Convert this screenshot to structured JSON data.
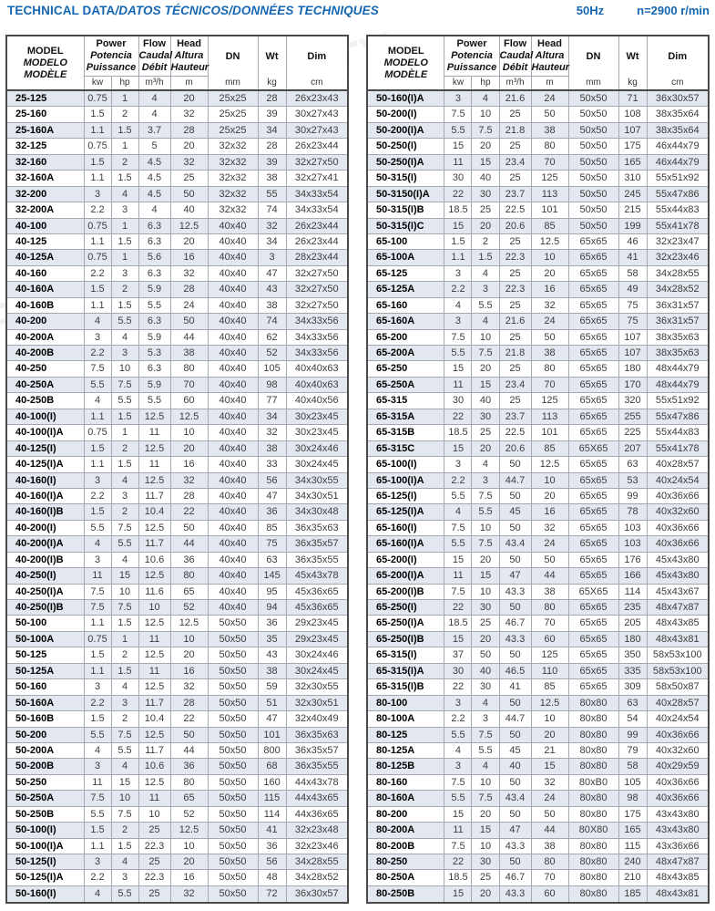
{
  "header_bar": {
    "title_main": "TECHNICAL DATA",
    "title_rest": "/DATOS TÉCNICOS/DONNÉES TECHNIQUES",
    "frequency": "50Hz",
    "speed": "n=2900 r/min"
  },
  "columns": {
    "model": [
      "MODEL",
      "MODELO",
      "MODÈLE"
    ],
    "power": [
      "Power",
      "Potencia",
      "Puissance"
    ],
    "flow": [
      "Flow",
      "Caudal",
      "Débit"
    ],
    "head": [
      "Head",
      "Altura",
      "Hauteur"
    ],
    "dn": "DN",
    "wt": "Wt",
    "dim": "Dim"
  },
  "units": {
    "kw": "kw",
    "hp": "hp",
    "flow": "m³/h",
    "head": "m",
    "dn": "mm",
    "wt": "kg",
    "dim": "cm"
  },
  "colors": {
    "accent_blue": "#1566b1",
    "row_stripe": "#e3e7f0"
  },
  "watermark_text": "PURITY",
  "tables": [
    {
      "name": "left",
      "rows": [
        [
          "25-125",
          "0.75",
          "1",
          "4",
          "20",
          "25x25",
          "28",
          "26x23x43"
        ],
        [
          "25-160",
          "1.5",
          "2",
          "4",
          "32",
          "25x25",
          "39",
          "30x27x43"
        ],
        [
          "25-160A",
          "1.1",
          "1.5",
          "3.7",
          "28",
          "25x25",
          "34",
          "30x27x43"
        ],
        [
          "32-125",
          "0.75",
          "1",
          "5",
          "20",
          "32x32",
          "28",
          "26x23x44"
        ],
        [
          "32-160",
          "1.5",
          "2",
          "4.5",
          "32",
          "32x32",
          "39",
          "32x27x50"
        ],
        [
          "32-160A",
          "1.1",
          "1.5",
          "4.5",
          "25",
          "32x32",
          "38",
          "32x27x41"
        ],
        [
          "32-200",
          "3",
          "4",
          "4.5",
          "50",
          "32x32",
          "55",
          "34x33x54"
        ],
        [
          "32-200A",
          "2.2",
          "3",
          "4",
          "40",
          "32x32",
          "74",
          "34x33x54"
        ],
        [
          "40-100",
          "0.75",
          "1",
          "6.3",
          "12.5",
          "40x40",
          "32",
          "26x23x44"
        ],
        [
          "40-125",
          "1.1",
          "1.5",
          "6.3",
          "20",
          "40x40",
          "34",
          "26x23x44"
        ],
        [
          "40-125A",
          "0.75",
          "1",
          "5.6",
          "16",
          "40x40",
          "3",
          "28x23x44"
        ],
        [
          "40-160",
          "2.2",
          "3",
          "6.3",
          "32",
          "40x40",
          "47",
          "32x27x50"
        ],
        [
          "40-160A",
          "1.5",
          "2",
          "5.9",
          "28",
          "40x40",
          "43",
          "32x27x50"
        ],
        [
          "40-160B",
          "1.1",
          "1.5",
          "5.5",
          "24",
          "40x40",
          "38",
          "32x27x50"
        ],
        [
          "40-200",
          "4",
          "5.5",
          "6.3",
          "50",
          "40x40",
          "74",
          "34x33x56"
        ],
        [
          "40-200A",
          "3",
          "4",
          "5.9",
          "44",
          "40x40",
          "62",
          "34x33x56"
        ],
        [
          "40-200B",
          "2.2",
          "3",
          "5.3",
          "38",
          "40x40",
          "52",
          "34x33x56"
        ],
        [
          "40-250",
          "7.5",
          "10",
          "6.3",
          "80",
          "40x40",
          "105",
          "40x40x63"
        ],
        [
          "40-250A",
          "5.5",
          "7.5",
          "5.9",
          "70",
          "40x40",
          "98",
          "40x40x63"
        ],
        [
          "40-250B",
          "4",
          "5.5",
          "5.5",
          "60",
          "40x40",
          "77",
          "40x40x56"
        ],
        [
          "40-100(I)",
          "1.1",
          "1.5",
          "12.5",
          "12.5",
          "40x40",
          "34",
          "30x23x45"
        ],
        [
          "40-100(I)A",
          "0.75",
          "1",
          "11",
          "10",
          "40x40",
          "32",
          "30x23x45"
        ],
        [
          "40-125(I)",
          "1.5",
          "2",
          "12.5",
          "20",
          "40x40",
          "38",
          "30x24x46"
        ],
        [
          "40-125(I)A",
          "1.1",
          "1.5",
          "11",
          "16",
          "40x40",
          "33",
          "30x24x45"
        ],
        [
          "40-160(I)",
          "3",
          "4",
          "12.5",
          "32",
          "40x40",
          "56",
          "34x30x55"
        ],
        [
          "40-160(I)A",
          "2.2",
          "3",
          "11.7",
          "28",
          "40x40",
          "47",
          "34x30x51"
        ],
        [
          "40-160(I)B",
          "1.5",
          "2",
          "10.4",
          "22",
          "40x40",
          "36",
          "34x30x48"
        ],
        [
          "40-200(I)",
          "5.5",
          "7.5",
          "12.5",
          "50",
          "40x40",
          "85",
          "36x35x63"
        ],
        [
          "40-200(I)A",
          "4",
          "5.5",
          "11.7",
          "44",
          "40x40",
          "75",
          "36x35x57"
        ],
        [
          "40-200(I)B",
          "3",
          "4",
          "10.6",
          "36",
          "40x40",
          "63",
          "36x35x55"
        ],
        [
          "40-250(I)",
          "11",
          "15",
          "12.5",
          "80",
          "40x40",
          "145",
          "45x43x78"
        ],
        [
          "40-250(I)A",
          "7.5",
          "10",
          "11.6",
          "65",
          "40x40",
          "95",
          "45x36x65"
        ],
        [
          "40-250(I)B",
          "7.5",
          "7.5",
          "10",
          "52",
          "40x40",
          "94",
          "45x36x65"
        ],
        [
          "50-100",
          "1.1",
          "1.5",
          "12.5",
          "12.5",
          "50x50",
          "36",
          "29x23x45"
        ],
        [
          "50-100A",
          "0.75",
          "1",
          "11",
          "10",
          "50x50",
          "35",
          "29x23x45"
        ],
        [
          "50-125",
          "1.5",
          "2",
          "12.5",
          "20",
          "50x50",
          "43",
          "30x24x46"
        ],
        [
          "50-125A",
          "1.1",
          "1.5",
          "11",
          "16",
          "50x50",
          "38",
          "30x24x45"
        ],
        [
          "50-160",
          "3",
          "4",
          "12.5",
          "32",
          "50x50",
          "59",
          "32x30x55"
        ],
        [
          "50-160A",
          "2.2",
          "3",
          "11.7",
          "28",
          "50x50",
          "51",
          "32x30x51"
        ],
        [
          "50-160B",
          "1.5",
          "2",
          "10.4",
          "22",
          "50x50",
          "47",
          "32x40x49"
        ],
        [
          "50-200",
          "5.5",
          "7.5",
          "12.5",
          "50",
          "50x50",
          "101",
          "36x35x63"
        ],
        [
          "50-200A",
          "4",
          "5.5",
          "11.7",
          "44",
          "50x50",
          "800",
          "36x35x57"
        ],
        [
          "50-200B",
          "3",
          "4",
          "10.6",
          "36",
          "50x50",
          "68",
          "36x35x55"
        ],
        [
          "50-250",
          "11",
          "15",
          "12.5",
          "80",
          "50x50",
          "160",
          "44x43x78"
        ],
        [
          "50-250A",
          "7.5",
          "10",
          "11",
          "65",
          "50x50",
          "115",
          "44x43x65"
        ],
        [
          "50-250B",
          "5.5",
          "7.5",
          "10",
          "52",
          "50x50",
          "114",
          "44x36x65"
        ],
        [
          "50-100(I)",
          "1.5",
          "2",
          "25",
          "12.5",
          "50x50",
          "41",
          "32x23x48"
        ],
        [
          "50-100(I)A",
          "1.1",
          "1.5",
          "22.3",
          "10",
          "50x50",
          "36",
          "32x23x46"
        ],
        [
          "50-125(I)",
          "3",
          "4",
          "25",
          "20",
          "50x50",
          "56",
          "34x28x55"
        ],
        [
          "50-125(I)A",
          "2.2",
          "3",
          "22.3",
          "16",
          "50x50",
          "48",
          "34x28x52"
        ],
        [
          "50-160(I)",
          "4",
          "5.5",
          "25",
          "32",
          "50x50",
          "72",
          "36x30x57"
        ]
      ]
    },
    {
      "name": "right",
      "rows": [
        [
          "50-160(I)A",
          "3",
          "4",
          "21.6",
          "24",
          "50x50",
          "71",
          "36x30x57"
        ],
        [
          "50-200(I)",
          "7.5",
          "10",
          "25",
          "50",
          "50x50",
          "108",
          "38x35x64"
        ],
        [
          "50-200(I)A",
          "5.5",
          "7.5",
          "21.8",
          "38",
          "50x50",
          "107",
          "38x35x64"
        ],
        [
          "50-250(I)",
          "15",
          "20",
          "25",
          "80",
          "50x50",
          "175",
          "46x44x79"
        ],
        [
          "50-250(I)A",
          "11",
          "15",
          "23.4",
          "70",
          "50x50",
          "165",
          "46x44x79"
        ],
        [
          "50-315(I)",
          "30",
          "40",
          "25",
          "125",
          "50x50",
          "310",
          "55x51x92"
        ],
        [
          "50-3150(I)A",
          "22",
          "30",
          "23.7",
          "113",
          "50x50",
          "245",
          "55x47x86"
        ],
        [
          "50-315(I)B",
          "18.5",
          "25",
          "22.5",
          "101",
          "50x50",
          "215",
          "55x44x83"
        ],
        [
          "50-315(I)C",
          "15",
          "20",
          "20.6",
          "85",
          "50x50",
          "199",
          "55x41x78"
        ],
        [
          "65-100",
          "1.5",
          "2",
          "25",
          "12.5",
          "65x65",
          "46",
          "32x23x47"
        ],
        [
          "65-100A",
          "1.1",
          "1.5",
          "22.3",
          "10",
          "65x65",
          "41",
          "32x23x46"
        ],
        [
          "65-125",
          "3",
          "4",
          "25",
          "20",
          "65x65",
          "58",
          "34x28x55"
        ],
        [
          "65-125A",
          "2.2",
          "3",
          "22.3",
          "16",
          "65x65",
          "49",
          "34x28x52"
        ],
        [
          "65-160",
          "4",
          "5.5",
          "25",
          "32",
          "65x65",
          "75",
          "36x31x57"
        ],
        [
          "65-160A",
          "3",
          "4",
          "21.6",
          "24",
          "65x65",
          "75",
          "36x31x57"
        ],
        [
          "65-200",
          "7.5",
          "10",
          "25",
          "50",
          "65x65",
          "107",
          "38x35x63"
        ],
        [
          "65-200A",
          "5.5",
          "7.5",
          "21.8",
          "38",
          "65x65",
          "107",
          "38x35x63"
        ],
        [
          "65-250",
          "15",
          "20",
          "25",
          "80",
          "65x65",
          "180",
          "48x44x79"
        ],
        [
          "65-250A",
          "11",
          "15",
          "23.4",
          "70",
          "65x65",
          "170",
          "48x44x79"
        ],
        [
          "65-315",
          "30",
          "40",
          "25",
          "125",
          "65x65",
          "320",
          "55x51x92"
        ],
        [
          "65-315A",
          "22",
          "30",
          "23.7",
          "113",
          "65x65",
          "255",
          "55x47x86"
        ],
        [
          "65-315B",
          "18.5",
          "25",
          "22.5",
          "101",
          "65x65",
          "225",
          "55x44x83"
        ],
        [
          "65-315C",
          "15",
          "20",
          "20.6",
          "85",
          "65X65",
          "207",
          "55x41x78"
        ],
        [
          "65-100(I)",
          "3",
          "4",
          "50",
          "12.5",
          "65x65",
          "63",
          "40x28x57"
        ],
        [
          "65-100(I)A",
          "2.2",
          "3",
          "44.7",
          "10",
          "65x65",
          "53",
          "40x24x54"
        ],
        [
          "65-125(I)",
          "5.5",
          "7.5",
          "50",
          "20",
          "65x65",
          "99",
          "40x36x66"
        ],
        [
          "65-125(I)A",
          "4",
          "5.5",
          "45",
          "16",
          "65x65",
          "78",
          "40x32x60"
        ],
        [
          "65-160(I)",
          "7.5",
          "10",
          "50",
          "32",
          "65x65",
          "103",
          "40x36x66"
        ],
        [
          "65-160(I)A",
          "5.5",
          "7.5",
          "43.4",
          "24",
          "65x65",
          "103",
          "40x36x66"
        ],
        [
          "65-200(I)",
          "15",
          "20",
          "50",
          "50",
          "65x65",
          "176",
          "45x43x80"
        ],
        [
          "65-200(I)A",
          "11",
          "15",
          "47",
          "44",
          "65x65",
          "166",
          "45x43x80"
        ],
        [
          "65-200(I)B",
          "7.5",
          "10",
          "43.3",
          "38",
          "65X65",
          "114",
          "45x43x67"
        ],
        [
          "65-250(I)",
          "22",
          "30",
          "50",
          "80",
          "65x65",
          "235",
          "48x47x87"
        ],
        [
          "65-250(I)A",
          "18.5",
          "25",
          "46.7",
          "70",
          "65x65",
          "205",
          "48x43x85"
        ],
        [
          "65-250(I)B",
          "15",
          "20",
          "43.3",
          "60",
          "65x65",
          "180",
          "48x43x81"
        ],
        [
          "65-315(I)",
          "37",
          "50",
          "50",
          "125",
          "65x65",
          "350",
          "58x53x100"
        ],
        [
          "65-315(I)A",
          "30",
          "40",
          "46.5",
          "110",
          "65x65",
          "335",
          "58x53x100"
        ],
        [
          "65-315(I)B",
          "22",
          "30",
          "41",
          "85",
          "65x65",
          "309",
          "58x50x87"
        ],
        [
          "80-100",
          "3",
          "4",
          "50",
          "12.5",
          "80x80",
          "63",
          "40x28x57"
        ],
        [
          "80-100A",
          "2.2",
          "3",
          "44.7",
          "10",
          "80x80",
          "54",
          "40x24x54"
        ],
        [
          "80-125",
          "5.5",
          "7.5",
          "50",
          "20",
          "80x80",
          "99",
          "40x36x66"
        ],
        [
          "80-125A",
          "4",
          "5.5",
          "45",
          "21",
          "80x80",
          "79",
          "40x32x60"
        ],
        [
          "80-125B",
          "3",
          "4",
          "40",
          "15",
          "80x80",
          "58",
          "40x29x59"
        ],
        [
          "80-160",
          "7.5",
          "10",
          "50",
          "32",
          "80xB0",
          "105",
          "40x36x66"
        ],
        [
          "80-160A",
          "5.5",
          "7.5",
          "43.4",
          "24",
          "80x80",
          "98",
          "40x36x66"
        ],
        [
          "80-200",
          "15",
          "20",
          "50",
          "50",
          "80x80",
          "175",
          "43x43x80"
        ],
        [
          "80-200A",
          "11",
          "15",
          "47",
          "44",
          "80X80",
          "165",
          "43x43x80"
        ],
        [
          "80-200B",
          "7.5",
          "10",
          "43.3",
          "38",
          "80x80",
          "115",
          "43x36x66"
        ],
        [
          "80-250",
          "22",
          "30",
          "50",
          "80",
          "80x80",
          "240",
          "48x47x87"
        ],
        [
          "80-250A",
          "18.5",
          "25",
          "46.7",
          "70",
          "80x80",
          "210",
          "48x43x85"
        ],
        [
          "80-250B",
          "15",
          "20",
          "43.3",
          "60",
          "80x80",
          "185",
          "48x43x81"
        ]
      ]
    }
  ]
}
